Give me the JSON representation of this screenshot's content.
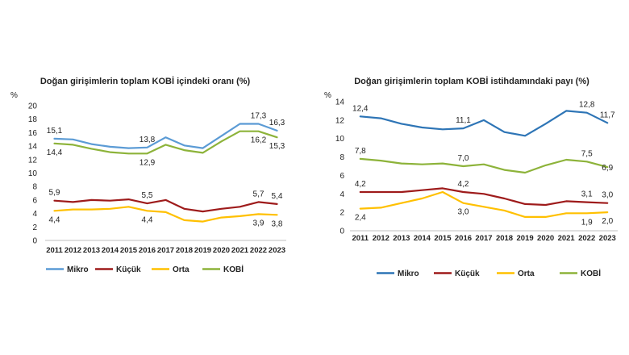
{
  "chart_data": [
    {
      "type": "line",
      "title": "Doğan girişimlerin toplam KOBİ içindeki oranı (%)",
      "ylabel": "%",
      "xlabel": "",
      "ylim": [
        0,
        20
      ],
      "yticks": [
        "0",
        "2",
        "4",
        "6",
        "8",
        "10",
        "12",
        "14",
        "16",
        "18",
        "20"
      ],
      "grid": false,
      "legend": "bottom",
      "categories": [
        "2011",
        "2012",
        "2013",
        "2014",
        "2015",
        "2016",
        "2017",
        "2018",
        "2019",
        "2020",
        "2021",
        "2022",
        "2023"
      ],
      "series": [
        {
          "name": "Mikro",
          "color": "#5b9bd5",
          "values": [
            15.1,
            15.0,
            14.3,
            13.9,
            13.7,
            13.8,
            15.3,
            14.1,
            13.7,
            15.5,
            17.3,
            17.3,
            16.3
          ]
        },
        {
          "name": "Küçük",
          "color": "#9e1b1b",
          "values": [
            5.9,
            5.7,
            6.0,
            5.9,
            6.1,
            5.5,
            6.0,
            4.7,
            4.3,
            4.7,
            5.0,
            5.7,
            5.4
          ]
        },
        {
          "name": "Orta",
          "color": "#ffc000",
          "values": [
            4.4,
            4.6,
            4.6,
            4.7,
            5.0,
            4.4,
            4.2,
            3.0,
            2.8,
            3.4,
            3.6,
            3.9,
            3.8
          ]
        },
        {
          "name": "KOBİ",
          "color": "#8db33a",
          "values": [
            14.4,
            14.2,
            13.6,
            13.1,
            12.9,
            12.9,
            14.2,
            13.4,
            13.0,
            14.7,
            16.2,
            16.2,
            15.3
          ]
        }
      ],
      "data_labels": [
        {
          "series": 0,
          "index": 0,
          "text": "15,1",
          "pos": "above"
        },
        {
          "series": 0,
          "index": 5,
          "text": "13,8",
          "pos": "above"
        },
        {
          "series": 0,
          "index": 11,
          "text": "17,3",
          "pos": "above"
        },
        {
          "series": 0,
          "index": 12,
          "text": "16,3",
          "pos": "above"
        },
        {
          "series": 3,
          "index": 0,
          "text": "14,4",
          "pos": "below"
        },
        {
          "series": 3,
          "index": 5,
          "text": "12,9",
          "pos": "below"
        },
        {
          "series": 3,
          "index": 11,
          "text": "16,2",
          "pos": "below"
        },
        {
          "series": 3,
          "index": 12,
          "text": "15,3",
          "pos": "below"
        },
        {
          "series": 1,
          "index": 0,
          "text": "5,9",
          "pos": "above"
        },
        {
          "series": 1,
          "index": 5,
          "text": "5,5",
          "pos": "above"
        },
        {
          "series": 1,
          "index": 11,
          "text": "5,7",
          "pos": "above"
        },
        {
          "series": 1,
          "index": 12,
          "text": "5,4",
          "pos": "above"
        },
        {
          "series": 2,
          "index": 0,
          "text": "4,4",
          "pos": "below"
        },
        {
          "series": 2,
          "index": 5,
          "text": "4,4",
          "pos": "below"
        },
        {
          "series": 2,
          "index": 11,
          "text": "3,9",
          "pos": "below"
        },
        {
          "series": 2,
          "index": 12,
          "text": "3,8",
          "pos": "below"
        }
      ]
    },
    {
      "type": "line",
      "title": "Doğan girişimlerin toplam KOBİ istihdamındaki payı (%)",
      "ylabel": "%",
      "xlabel": "",
      "ylim": [
        0,
        14
      ],
      "yticks": [
        "0",
        "2",
        "4",
        "6",
        "8",
        "10",
        "12",
        "14"
      ],
      "grid": false,
      "legend": "bottom",
      "categories": [
        "2011",
        "2012",
        "2013",
        "2014",
        "2015",
        "2016",
        "2017",
        "2018",
        "2019",
        "2020",
        "2021",
        "2022",
        "2023"
      ],
      "series": [
        {
          "name": "Mikro",
          "color": "#2e75b6",
          "values": [
            12.4,
            12.2,
            11.6,
            11.2,
            11.0,
            11.1,
            12.0,
            10.7,
            10.3,
            11.6,
            13.0,
            12.8,
            11.7
          ]
        },
        {
          "name": "Küçük",
          "color": "#9e1b1b",
          "values": [
            4.2,
            4.2,
            4.2,
            4.4,
            4.6,
            4.2,
            4.0,
            3.5,
            2.9,
            2.8,
            3.2,
            3.1,
            3.0
          ]
        },
        {
          "name": "Orta",
          "color": "#ffc000",
          "values": [
            2.4,
            2.5,
            3.0,
            3.5,
            4.2,
            3.0,
            2.6,
            2.2,
            1.5,
            1.5,
            1.9,
            1.9,
            2.0
          ]
        },
        {
          "name": "KOBİ",
          "color": "#8db33a",
          "values": [
            7.8,
            7.6,
            7.3,
            7.2,
            7.3,
            7.0,
            7.2,
            6.6,
            6.3,
            7.1,
            7.7,
            7.5,
            6.9
          ]
        }
      ],
      "data_labels": [
        {
          "series": 0,
          "index": 0,
          "text": "12,4",
          "pos": "above"
        },
        {
          "series": 0,
          "index": 5,
          "text": "11,1",
          "pos": "above"
        },
        {
          "series": 0,
          "index": 11,
          "text": "12,8",
          "pos": "above"
        },
        {
          "series": 0,
          "index": 12,
          "text": "11,7",
          "pos": "above"
        },
        {
          "series": 3,
          "index": 0,
          "text": "7,8",
          "pos": "above"
        },
        {
          "series": 3,
          "index": 5,
          "text": "7,0",
          "pos": "above"
        },
        {
          "series": 3,
          "index": 11,
          "text": "7,5",
          "pos": "above"
        },
        {
          "series": 3,
          "index": 12,
          "text": "6,9",
          "pos": "center"
        },
        {
          "series": 1,
          "index": 0,
          "text": "4,2",
          "pos": "above"
        },
        {
          "series": 1,
          "index": 5,
          "text": "4,2",
          "pos": "above"
        },
        {
          "series": 1,
          "index": 11,
          "text": "3,1",
          "pos": "above"
        },
        {
          "series": 1,
          "index": 12,
          "text": "3,0",
          "pos": "above"
        },
        {
          "series": 2,
          "index": 0,
          "text": "2,4",
          "pos": "below"
        },
        {
          "series": 2,
          "index": 5,
          "text": "3,0",
          "pos": "below"
        },
        {
          "series": 2,
          "index": 11,
          "text": "1,9",
          "pos": "below"
        },
        {
          "series": 2,
          "index": 12,
          "text": "2,0",
          "pos": "below"
        }
      ]
    }
  ]
}
